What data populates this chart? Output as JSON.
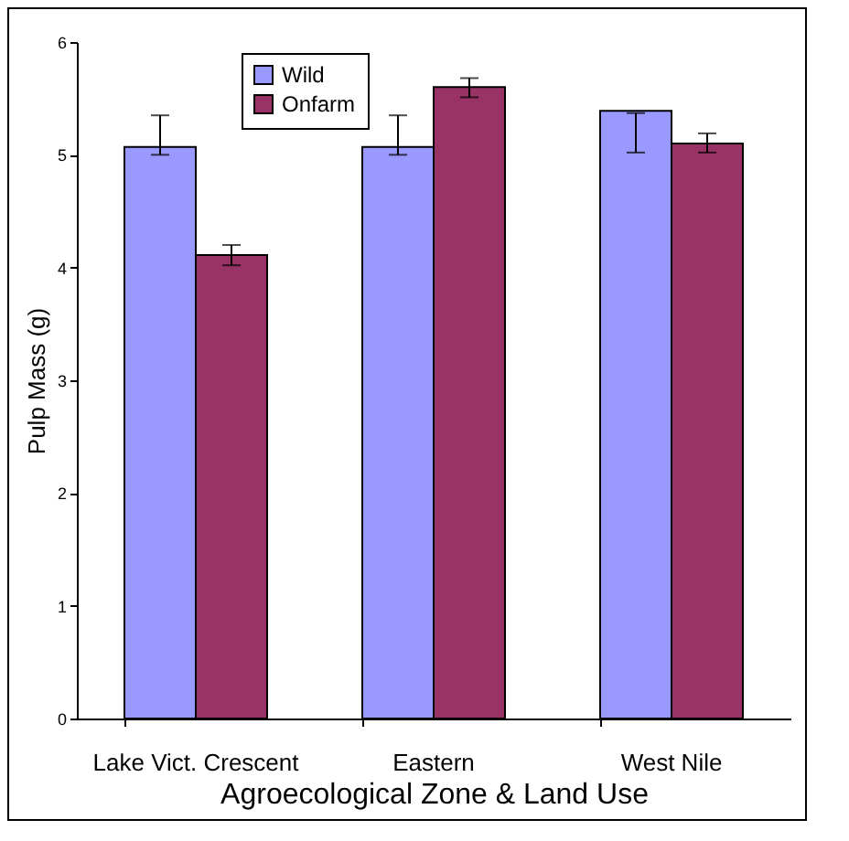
{
  "chart_data": {
    "type": "bar",
    "xlabel": "Agroecological Zone & Land Use",
    "ylabel": "Pulp Mass (g)",
    "categories": [
      "Lake Vict. Crescent",
      "Eastern",
      "West Nile"
    ],
    "series": [
      {
        "name": "Wild",
        "color": "#9999ff",
        "values": [
          5.07,
          5.07,
          5.39
        ],
        "errors": [
          [
            5.0,
            5.35
          ],
          [
            5.0,
            5.35
          ],
          [
            5.02,
            5.37
          ]
        ]
      },
      {
        "name": "Onfarm",
        "color": "#993366",
        "values": [
          4.11,
          5.6,
          5.1
        ],
        "errors": [
          [
            4.02,
            4.2
          ],
          [
            5.51,
            5.68
          ],
          [
            5.02,
            5.19
          ]
        ]
      }
    ],
    "ylim": [
      0,
      6
    ],
    "yticks": [
      0,
      1,
      2,
      3,
      4,
      5,
      6
    ],
    "grid": false,
    "legend": "top left"
  }
}
